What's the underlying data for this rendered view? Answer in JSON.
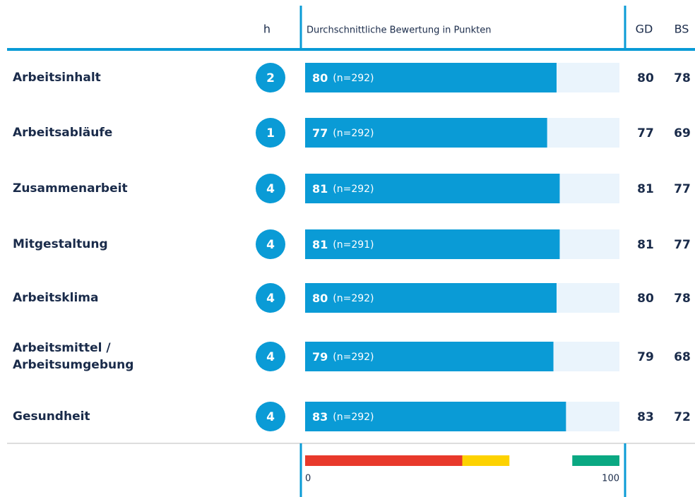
{
  "chart_data": {
    "type": "bar",
    "header": {
      "h": "h",
      "title": "Durchschnittliche Bewertung in Punkten",
      "gd": "GD",
      "bs": "BS"
    },
    "rows": [
      {
        "label": [
          "Arbeitsinhalt"
        ],
        "h": 2,
        "value": 80,
        "n": "(n=292)",
        "gd": 80,
        "bs": 78
      },
      {
        "label": [
          "Arbeitsabläufe"
        ],
        "h": 1,
        "value": 77,
        "n": "(n=292)",
        "gd": 77,
        "bs": 69
      },
      {
        "label": [
          "Zusammenarbeit"
        ],
        "h": 4,
        "value": 81,
        "n": "(n=292)",
        "gd": 81,
        "bs": 77
      },
      {
        "label": [
          "Mitgestaltung"
        ],
        "h": 4,
        "value": 81,
        "n": "(n=291)",
        "gd": 81,
        "bs": 77
      },
      {
        "label": [
          "Arbeitsklima"
        ],
        "h": 4,
        "value": 80,
        "n": "(n=292)",
        "gd": 80,
        "bs": 78
      },
      {
        "label": [
          "Arbeitsmittel /",
          "Arbeitsumgebung"
        ],
        "h": 4,
        "value": 79,
        "n": "(n=292)",
        "gd": 79,
        "bs": 68
      },
      {
        "label": [
          "Gesundheit"
        ],
        "h": 4,
        "value": 83,
        "n": "(n=292)",
        "gd": 83,
        "bs": 72
      }
    ],
    "color": "#0a9bd6",
    "xlim": [
      0,
      100
    ],
    "xticks": [
      0,
      100
    ],
    "bands": [
      {
        "from": 0,
        "to": 50,
        "color": "#e8392b"
      },
      {
        "from": 50,
        "to": 65,
        "color": "#fdd200"
      },
      {
        "from": 85,
        "to": 100,
        "color": "#0aa882"
      }
    ]
  }
}
